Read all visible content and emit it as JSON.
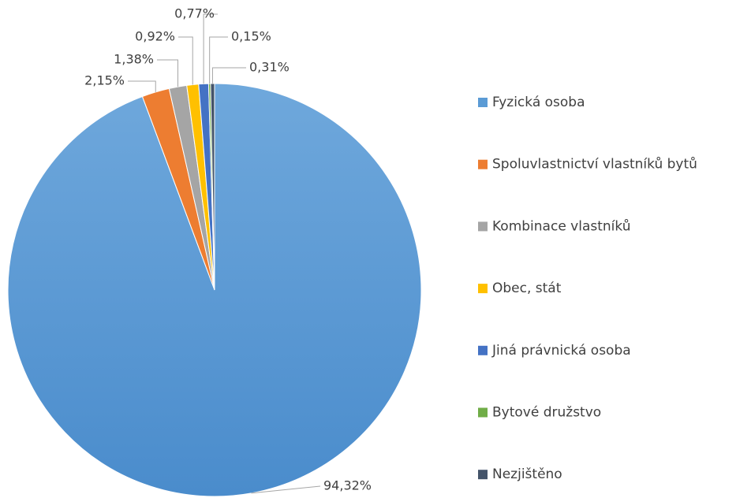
{
  "chart_data": {
    "type": "pie",
    "categories": [
      "Fyzická osoba",
      "Spoluvlastnictví vlastníků bytů",
      "Kombinace vlastníků",
      "Obec, stát",
      "Jiná právnická osoba",
      "Bytové družstvo",
      "Nezjištěno"
    ],
    "values": [
      94.32,
      2.15,
      1.38,
      0.92,
      0.77,
      0.15,
      0.31
    ],
    "value_labels": [
      "94,32%",
      "2,15%",
      "1,38%",
      "0,92%",
      "0,77%",
      "0,15%",
      "0,31%"
    ],
    "colors": [
      "#5b9bd5",
      "#ed7d31",
      "#a5a5a5",
      "#ffc000",
      "#4472c4",
      "#70ad47",
      "#44546a"
    ],
    "legend": "right"
  }
}
